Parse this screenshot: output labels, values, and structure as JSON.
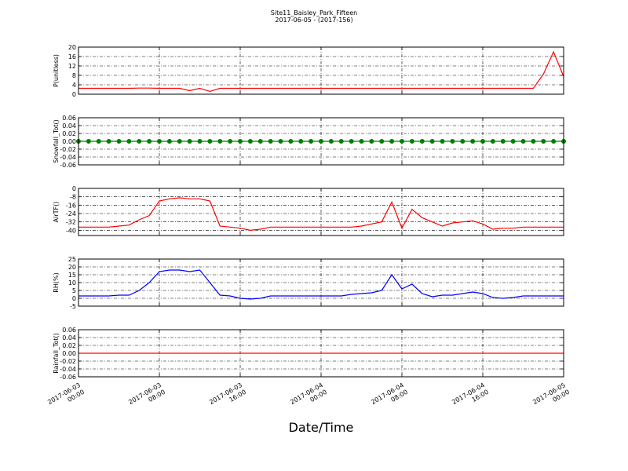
{
  "chart_data": [
    {
      "type": "line",
      "title": "Site11_Baisley_Park_Fifteen",
      "subtitle": "2017-06-05 - (2017-156)",
      "ylabel": "P(unitless)",
      "grid": true,
      "xlim": [
        "2017-06-03 00:00",
        "2017-06-05 00:00"
      ],
      "xticks": [
        "2017-06-03 00:00",
        "2017-06-03 08:00",
        "2017-06-03 16:00",
        "2017-06-04 00:00",
        "2017-06-04 08:00",
        "2017-06-04 16:00",
        "2017-06-05 00:00"
      ],
      "ylim": [
        0,
        20
      ],
      "yticks": [
        0,
        4,
        8,
        12,
        16,
        20
      ],
      "x": [
        "2017-06-03 00:00",
        "2017-06-03 01:00",
        "2017-06-03 02:00",
        "2017-06-03 03:00",
        "2017-06-03 04:00",
        "2017-06-03 05:00",
        "2017-06-03 06:00",
        "2017-06-03 07:00",
        "2017-06-03 08:00",
        "2017-06-03 09:00",
        "2017-06-03 10:00",
        "2017-06-03 11:00",
        "2017-06-03 12:00",
        "2017-06-03 13:00",
        "2017-06-03 14:00",
        "2017-06-03 15:00",
        "2017-06-03 16:00",
        "2017-06-03 17:00",
        "2017-06-03 18:00",
        "2017-06-03 19:00",
        "2017-06-03 20:00",
        "2017-06-03 21:00",
        "2017-06-03 22:00",
        "2017-06-03 23:00",
        "2017-06-04 00:00",
        "2017-06-04 01:00",
        "2017-06-04 02:00",
        "2017-06-04 03:00",
        "2017-06-04 04:00",
        "2017-06-04 05:00",
        "2017-06-04 06:00",
        "2017-06-04 07:00",
        "2017-06-04 08:00",
        "2017-06-04 09:00",
        "2017-06-04 10:00",
        "2017-06-04 11:00",
        "2017-06-04 12:00",
        "2017-06-04 13:00",
        "2017-06-04 14:00",
        "2017-06-04 15:00",
        "2017-06-04 16:00",
        "2017-06-04 17:00",
        "2017-06-04 18:00",
        "2017-06-04 19:00",
        "2017-06-04 20:00",
        "2017-06-04 21:00",
        "2017-06-04 22:00",
        "2017-06-04 23:00",
        "2017-06-05 00:00"
      ],
      "series": [
        {
          "color": "#ff0000",
          "values": [
            2.5,
            2.5,
            2.5,
            2.5,
            2.5,
            2.5,
            2.6,
            2.6,
            2.5,
            2.5,
            2.5,
            1.5,
            2.5,
            1.2,
            2.5,
            2.5,
            2.5,
            2.5,
            2.5,
            2.5,
            2.5,
            2.5,
            2.5,
            2.5,
            2.5,
            2.5,
            2.5,
            2.5,
            2.5,
            2.5,
            2.5,
            2.5,
            2.5,
            2.5,
            2.5,
            2.5,
            2.5,
            2.5,
            2.5,
            2.5,
            2.5,
            2.5,
            2.5,
            2.5,
            2.5,
            2.5,
            8.5,
            18,
            7.5
          ]
        }
      ]
    },
    {
      "type": "line",
      "ylabel": "Snowfall_Tot()",
      "grid": true,
      "xlim": [
        "2017-06-03 00:00",
        "2017-06-05 00:00"
      ],
      "xticks": [
        "2017-06-03 00:00",
        "2017-06-03 08:00",
        "2017-06-03 16:00",
        "2017-06-04 00:00",
        "2017-06-04 08:00",
        "2017-06-04 16:00",
        "2017-06-05 00:00"
      ],
      "ylim": [
        -0.06,
        0.06
      ],
      "yticks": [
        -0.06,
        -0.04,
        -0.02,
        {
          "value": 0,
          "label": "0.00"
        },
        0.02,
        0.04,
        0.06
      ],
      "x": [
        "2017-06-03 00:00",
        "2017-06-03 01:00",
        "2017-06-03 02:00",
        "2017-06-03 03:00",
        "2017-06-03 04:00",
        "2017-06-03 05:00",
        "2017-06-03 06:00",
        "2017-06-03 07:00",
        "2017-06-03 08:00",
        "2017-06-03 09:00",
        "2017-06-03 10:00",
        "2017-06-03 11:00",
        "2017-06-03 12:00",
        "2017-06-03 13:00",
        "2017-06-03 14:00",
        "2017-06-03 15:00",
        "2017-06-03 16:00",
        "2017-06-03 17:00",
        "2017-06-03 18:00",
        "2017-06-03 19:00",
        "2017-06-03 20:00",
        "2017-06-03 21:00",
        "2017-06-03 22:00",
        "2017-06-03 23:00",
        "2017-06-04 00:00",
        "2017-06-04 01:00",
        "2017-06-04 02:00",
        "2017-06-04 03:00",
        "2017-06-04 04:00",
        "2017-06-04 05:00",
        "2017-06-04 06:00",
        "2017-06-04 07:00",
        "2017-06-04 08:00",
        "2017-06-04 09:00",
        "2017-06-04 10:00",
        "2017-06-04 11:00",
        "2017-06-04 12:00",
        "2017-06-04 13:00",
        "2017-06-04 14:00",
        "2017-06-04 15:00",
        "2017-06-04 16:00",
        "2017-06-04 17:00",
        "2017-06-04 18:00",
        "2017-06-04 19:00",
        "2017-06-04 20:00",
        "2017-06-04 21:00",
        "2017-06-04 22:00",
        "2017-06-04 23:00",
        "2017-06-05 00:00"
      ],
      "series": [
        {
          "color": "#008000",
          "markers": true,
          "values": [
            0,
            0,
            0,
            0,
            0,
            0,
            0,
            0,
            0,
            0,
            0,
            0,
            0,
            0,
            0,
            0,
            0,
            0,
            0,
            0,
            0,
            0,
            0,
            0,
            0,
            0,
            0,
            0,
            0,
            0,
            0,
            0,
            0,
            0,
            0,
            0,
            0,
            0,
            0,
            0,
            0,
            0,
            0,
            0,
            0,
            0,
            0,
            0,
            0
          ]
        }
      ]
    },
    {
      "type": "line",
      "ylabel": "AirTF()",
      "grid": true,
      "xlim": [
        "2017-06-03 00:00",
        "2017-06-05 00:00"
      ],
      "xticks": [
        "2017-06-03 00:00",
        "2017-06-03 08:00",
        "2017-06-03 16:00",
        "2017-06-04 00:00",
        "2017-06-04 08:00",
        "2017-06-04 16:00",
        "2017-06-05 00:00"
      ],
      "ylim": [
        -45,
        0
      ],
      "yticks": [
        -40,
        -32,
        -24,
        -16,
        -8,
        0
      ],
      "x": [
        "2017-06-03 00:00",
        "2017-06-03 01:00",
        "2017-06-03 02:00",
        "2017-06-03 03:00",
        "2017-06-03 04:00",
        "2017-06-03 05:00",
        "2017-06-03 06:00",
        "2017-06-03 07:00",
        "2017-06-03 08:00",
        "2017-06-03 09:00",
        "2017-06-03 10:00",
        "2017-06-03 11:00",
        "2017-06-03 12:00",
        "2017-06-03 13:00",
        "2017-06-03 14:00",
        "2017-06-03 15:00",
        "2017-06-03 16:00",
        "2017-06-03 17:00",
        "2017-06-03 18:00",
        "2017-06-03 19:00",
        "2017-06-03 20:00",
        "2017-06-03 21:00",
        "2017-06-03 22:00",
        "2017-06-03 23:00",
        "2017-06-04 00:00",
        "2017-06-04 01:00",
        "2017-06-04 02:00",
        "2017-06-04 03:00",
        "2017-06-04 04:00",
        "2017-06-04 05:00",
        "2017-06-04 06:00",
        "2017-06-04 07:00",
        "2017-06-04 08:00",
        "2017-06-04 09:00",
        "2017-06-04 10:00",
        "2017-06-04 11:00",
        "2017-06-04 12:00",
        "2017-06-04 13:00",
        "2017-06-04 14:00",
        "2017-06-04 15:00",
        "2017-06-04 16:00",
        "2017-06-04 17:00",
        "2017-06-04 18:00",
        "2017-06-04 19:00",
        "2017-06-04 20:00",
        "2017-06-04 21:00",
        "2017-06-04 22:00",
        "2017-06-04 23:00",
        "2017-06-05 00:00"
      ],
      "series": [
        {
          "color": "#ff0000",
          "values": [
            -37,
            -37,
            -37,
            -37,
            -36,
            -35,
            -30,
            -26,
            -12,
            -10,
            -9,
            -10,
            -10,
            -12,
            -36,
            -37,
            -38,
            -40,
            -39,
            -37,
            -37,
            -37,
            -37,
            -37,
            -37,
            -37,
            -37,
            -37,
            -36,
            -34,
            -32,
            -13,
            -38,
            -20,
            -28,
            -32,
            -36,
            -33,
            -32,
            -31,
            -34,
            -39,
            -38,
            -38,
            -37,
            -37,
            -37,
            -37,
            -37
          ]
        }
      ]
    },
    {
      "type": "line",
      "ylabel": "RH(%)",
      "grid": true,
      "xlim": [
        "2017-06-03 00:00",
        "2017-06-05 00:00"
      ],
      "xticks": [
        "2017-06-03 00:00",
        "2017-06-03 08:00",
        "2017-06-03 16:00",
        "2017-06-04 00:00",
        "2017-06-04 08:00",
        "2017-06-04 16:00",
        "2017-06-05 00:00"
      ],
      "ylim": [
        -5,
        25
      ],
      "yticks": [
        -5,
        0,
        5,
        10,
        15,
        20,
        25
      ],
      "x": [
        "2017-06-03 00:00",
        "2017-06-03 01:00",
        "2017-06-03 02:00",
        "2017-06-03 03:00",
        "2017-06-03 04:00",
        "2017-06-03 05:00",
        "2017-06-03 06:00",
        "2017-06-03 07:00",
        "2017-06-03 08:00",
        "2017-06-03 09:00",
        "2017-06-03 10:00",
        "2017-06-03 11:00",
        "2017-06-03 12:00",
        "2017-06-03 13:00",
        "2017-06-03 14:00",
        "2017-06-03 15:00",
        "2017-06-03 16:00",
        "2017-06-03 17:00",
        "2017-06-03 18:00",
        "2017-06-03 19:00",
        "2017-06-03 20:00",
        "2017-06-03 21:00",
        "2017-06-03 22:00",
        "2017-06-03 23:00",
        "2017-06-04 00:00",
        "2017-06-04 01:00",
        "2017-06-04 02:00",
        "2017-06-04 03:00",
        "2017-06-04 04:00",
        "2017-06-04 05:00",
        "2017-06-04 06:00",
        "2017-06-04 07:00",
        "2017-06-04 08:00",
        "2017-06-04 09:00",
        "2017-06-04 10:00",
        "2017-06-04 11:00",
        "2017-06-04 12:00",
        "2017-06-04 13:00",
        "2017-06-04 14:00",
        "2017-06-04 15:00",
        "2017-06-04 16:00",
        "2017-06-04 17:00",
        "2017-06-04 18:00",
        "2017-06-04 19:00",
        "2017-06-04 20:00",
        "2017-06-04 21:00",
        "2017-06-04 22:00",
        "2017-06-04 23:00",
        "2017-06-05 00:00"
      ],
      "series": [
        {
          "color": "#0000ff",
          "values": [
            1.5,
            1.5,
            1.5,
            1.5,
            2,
            2,
            5,
            10,
            17,
            18,
            18,
            17,
            18,
            10,
            2,
            1.5,
            0,
            -0.5,
            0,
            1.5,
            1.5,
            1.5,
            1.5,
            1.5,
            1.5,
            1.5,
            1.5,
            2.5,
            3,
            3.5,
            5,
            15,
            6,
            9,
            3,
            1,
            2,
            2,
            3,
            4,
            3,
            0.5,
            0,
            0.5,
            1.5,
            1.5,
            1.5,
            1.5,
            1.5
          ]
        }
      ]
    },
    {
      "type": "line",
      "ylabel": "Rainfall_Tot()",
      "xlabel": "Date/Time",
      "grid": true,
      "xlim": [
        "2017-06-03 00:00",
        "2017-06-05 00:00"
      ],
      "xticks": [
        {
          "value": "2017-06-03 00:00",
          "label": "2017-06-03\n00:00"
        },
        {
          "value": "2017-06-03 08:00",
          "label": "2017-06-03\n08:00"
        },
        {
          "value": "2017-06-03 16:00",
          "label": "2017-06-03\n16:00"
        },
        {
          "value": "2017-06-04 00:00",
          "label": "2017-06-04\n00:00"
        },
        {
          "value": "2017-06-04 08:00",
          "label": "2017-06-04\n08:00"
        },
        {
          "value": "2017-06-04 16:00",
          "label": "2017-06-04\n16:00"
        },
        {
          "value": "2017-06-05 00:00",
          "label": "2017-06-05\n00:00"
        }
      ],
      "ylim": [
        -0.06,
        0.06
      ],
      "yticks": [
        -0.06,
        -0.04,
        -0.02,
        {
          "value": 0,
          "label": "0.00"
        },
        0.02,
        0.04,
        0.06
      ],
      "x": [
        "2017-06-03 00:00",
        "2017-06-03 01:00",
        "2017-06-03 02:00",
        "2017-06-03 03:00",
        "2017-06-03 04:00",
        "2017-06-03 05:00",
        "2017-06-03 06:00",
        "2017-06-03 07:00",
        "2017-06-03 08:00",
        "2017-06-03 09:00",
        "2017-06-03 10:00",
        "2017-06-03 11:00",
        "2017-06-03 12:00",
        "2017-06-03 13:00",
        "2017-06-03 14:00",
        "2017-06-03 15:00",
        "2017-06-03 16:00",
        "2017-06-03 17:00",
        "2017-06-03 18:00",
        "2017-06-03 19:00",
        "2017-06-03 20:00",
        "2017-06-03 21:00",
        "2017-06-03 22:00",
        "2017-06-03 23:00",
        "2017-06-04 00:00",
        "2017-06-04 01:00",
        "2017-06-04 02:00",
        "2017-06-04 03:00",
        "2017-06-04 04:00",
        "2017-06-04 05:00",
        "2017-06-04 06:00",
        "2017-06-04 07:00",
        "2017-06-04 08:00",
        "2017-06-04 09:00",
        "2017-06-04 10:00",
        "2017-06-04 11:00",
        "2017-06-04 12:00",
        "2017-06-04 13:00",
        "2017-06-04 14:00",
        "2017-06-04 15:00",
        "2017-06-04 16:00",
        "2017-06-04 17:00",
        "2017-06-04 18:00",
        "2017-06-04 19:00",
        "2017-06-04 20:00",
        "2017-06-04 21:00",
        "2017-06-04 22:00",
        "2017-06-04 23:00",
        "2017-06-05 00:00"
      ],
      "series": [
        {
          "color": "#ff0000",
          "values": [
            0,
            0,
            0,
            0,
            0,
            0,
            0,
            0,
            0,
            0,
            0,
            0,
            0,
            0,
            0,
            0,
            0,
            0,
            0,
            0,
            0,
            0,
            0,
            0,
            0,
            0,
            0,
            0,
            0,
            0,
            0,
            0,
            0,
            0,
            0,
            0,
            0,
            0,
            0,
            0,
            0,
            0,
            0,
            0,
            0,
            0,
            0,
            0,
            0
          ]
        }
      ]
    }
  ]
}
